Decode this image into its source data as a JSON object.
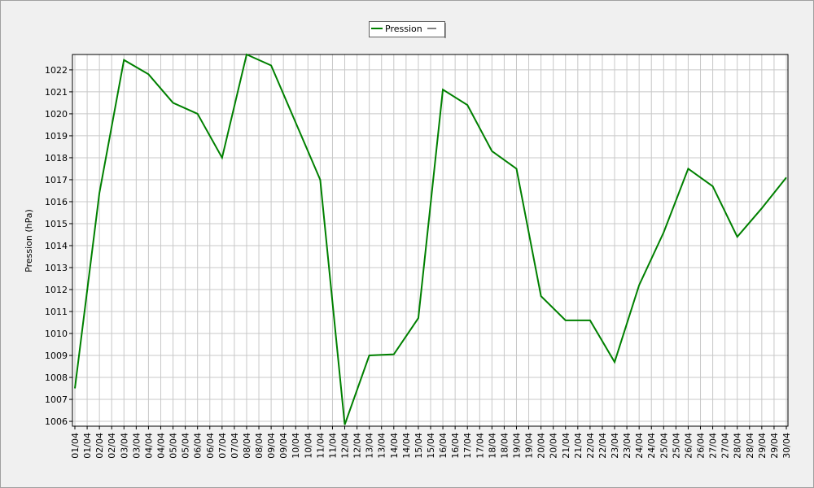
{
  "chart_data": {
    "type": "line",
    "y_label": "Pression (hPa)",
    "x_labels": [
      "01/04",
      "01/04",
      "02/04",
      "02/04",
      "03/04",
      "03/04",
      "04/04",
      "04/04",
      "05/04",
      "05/04",
      "06/04",
      "06/04",
      "07/04",
      "07/04",
      "08/04",
      "08/04",
      "09/04",
      "09/04",
      "10/04",
      "10/04",
      "11/04",
      "11/04",
      "12/04",
      "12/04",
      "13/04",
      "13/04",
      "14/04",
      "14/04",
      "15/04",
      "15/04",
      "16/04",
      "16/04",
      "17/04",
      "17/04",
      "18/04",
      "18/04",
      "19/04",
      "19/04",
      "20/04",
      "20/04",
      "21/04",
      "21/04",
      "22/04",
      "22/04",
      "23/04",
      "23/04",
      "24/04",
      "24/04",
      "25/04",
      "25/04",
      "26/04",
      "26/04",
      "27/04",
      "27/04",
      "28/04",
      "28/04",
      "29/04",
      "29/04",
      "30/04"
    ],
    "series": [
      {
        "name": "Pression",
        "color": "#008000",
        "values": [
          1007.5,
          1016.4,
          1022.45,
          1021.8,
          1020.5,
          1020.0,
          1018.0,
          1022.7,
          1022.2,
          1019.6,
          1017.0,
          1005.85,
          1009.0,
          1009.05,
          1010.7,
          1021.1,
          1020.4,
          1018.3,
          1017.5,
          1011.7,
          1010.6,
          1010.6,
          1008.7,
          1012.2,
          1014.6,
          1017.5,
          1016.7,
          1014.4,
          1015.7,
          1017.1
        ]
      }
    ],
    "ylim": [
      1005.78,
      1022.7
    ],
    "yticks": [
      1006,
      1007,
      1008,
      1009,
      1010,
      1011,
      1012,
      1013,
      1014,
      1015,
      1016,
      1017,
      1018,
      1019,
      1020,
      1021,
      1022
    ],
    "grid": true
  }
}
